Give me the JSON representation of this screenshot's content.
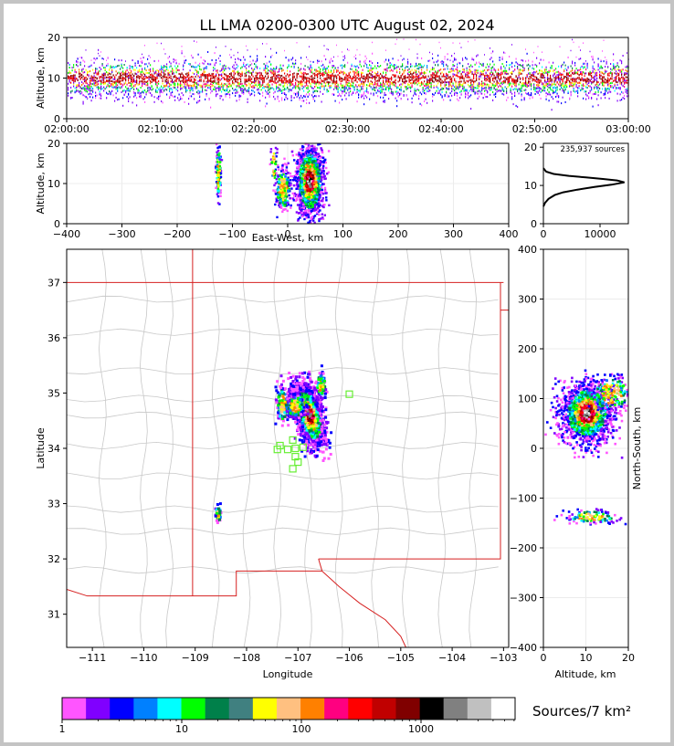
{
  "chart_data": {
    "type": "heatmap",
    "title": "LL LMA 0200-0300 UTC August 02, 2024",
    "source_count": "235,937 sources",
    "colorbar": {
      "label": "Sources/7 km²",
      "colors": [
        "#ff55ff",
        "#8000ff",
        "#0000ff",
        "#0080ff",
        "#00ffff",
        "#00ff00",
        "#00804a",
        "#408080",
        "#ffff00",
        "#ffc080",
        "#ff8000",
        "#ff0080",
        "#ff0000",
        "#c00000",
        "#800000",
        "#000000",
        "#808080",
        "#c0c0c0",
        "#ffffff"
      ],
      "ticks": [
        "1",
        "10",
        "100",
        "1000"
      ]
    },
    "time_altitude": {
      "ylabel": "Altitude, km",
      "ylim": [
        0,
        20
      ],
      "yticks": [
        "0",
        "10",
        "20"
      ],
      "xticks": [
        "02:00:00",
        "02:10:00",
        "02:20:00",
        "02:30:00",
        "02:40:00",
        "02:50:00",
        "03:00:00"
      ]
    },
    "ew_altitude": {
      "xlabel": "East-West, km",
      "ylabel": "Altitude, km",
      "xlim": [
        -400,
        400
      ],
      "ylim": [
        0,
        20
      ],
      "xticks": [
        "−400",
        "−300",
        "−200",
        "−100",
        "0",
        "100",
        "200",
        "300",
        "400"
      ],
      "yticks": [
        "0",
        "10",
        "20"
      ]
    },
    "histogram": {
      "xlim": [
        0,
        15000
      ],
      "ylim": [
        0,
        21
      ],
      "xticks": [
        "0",
        "10000"
      ],
      "yticks": [
        "0",
        "10",
        "20"
      ],
      "profile": [
        [
          0,
          4.5
        ],
        [
          300,
          5.5
        ],
        [
          900,
          6.5
        ],
        [
          2000,
          7.5
        ],
        [
          3500,
          8.2
        ],
        [
          6000,
          8.9
        ],
        [
          9000,
          9.6
        ],
        [
          12000,
          10.2
        ],
        [
          14300,
          10.8
        ],
        [
          13000,
          11.3
        ],
        [
          10500,
          11.7
        ],
        [
          7500,
          12.1
        ],
        [
          4500,
          12.5
        ],
        [
          1800,
          13.0
        ],
        [
          500,
          13.6
        ],
        [
          0,
          14.5
        ]
      ]
    },
    "plan_view": {
      "xlabel": "Longitude",
      "ylabel": "Latitude",
      "xlim": [
        -111.5,
        -102.9
      ],
      "ylim": [
        30.4,
        37.6
      ],
      "xticks": [
        "−111",
        "−110",
        "−109",
        "−108",
        "−107",
        "−106",
        "−105",
        "−104",
        "−103"
      ],
      "yticks": [
        "31",
        "32",
        "33",
        "34",
        "35",
        "36",
        "37"
      ],
      "sensors": [
        [
          -107.35,
          34.05
        ],
        [
          -107.4,
          33.98
        ],
        [
          -107.2,
          33.98
        ],
        [
          -107.05,
          34.0
        ],
        [
          -106.9,
          34.02
        ],
        [
          -107.1,
          34.15
        ],
        [
          -107.05,
          33.85
        ],
        [
          -107.0,
          33.75
        ],
        [
          -107.1,
          33.63
        ],
        [
          -106.0,
          34.98
        ]
      ]
    },
    "ns_altitude": {
      "xlabel": "Altitude, km",
      "ylabel": "North-South, km",
      "xlim": [
        0,
        20
      ],
      "ylim": [
        -400,
        400
      ],
      "xticks": [
        "0",
        "10",
        "20"
      ],
      "yticks": [
        "−400",
        "−300",
        "−200",
        "−100",
        "0",
        "100",
        "200",
        "300",
        "400"
      ]
    }
  }
}
